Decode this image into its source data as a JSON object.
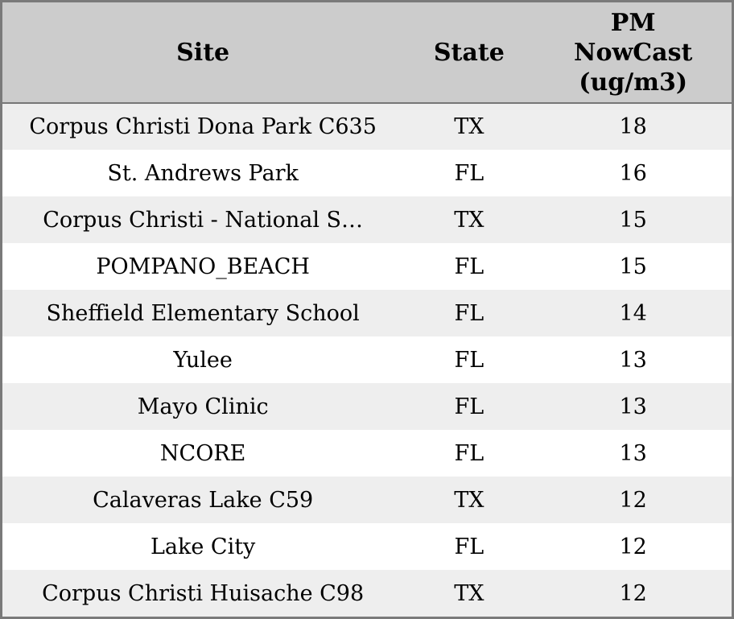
{
  "chart_data": {
    "type": "table",
    "columns": [
      {
        "label": "Site"
      },
      {
        "label": "State"
      },
      {
        "label": "PM NowCast (ug/m3)",
        "lines": [
          "PM",
          "NowCast",
          "(ug/m3)"
        ]
      }
    ],
    "rows": [
      {
        "site": "Corpus Christi Dona Park C635",
        "state": "TX",
        "pm": "18"
      },
      {
        "site": "St. Andrews Park",
        "state": "FL",
        "pm": "16"
      },
      {
        "site": "Corpus Christi - National S…",
        "state": "TX",
        "pm": "15"
      },
      {
        "site": "POMPANO_BEACH",
        "state": "FL",
        "pm": "15"
      },
      {
        "site": "Sheffield Elementary School",
        "state": "FL",
        "pm": "14"
      },
      {
        "site": "Yulee",
        "state": "FL",
        "pm": "13"
      },
      {
        "site": "Mayo Clinic",
        "state": "FL",
        "pm": "13"
      },
      {
        "site": "NCORE",
        "state": "FL",
        "pm": "13"
      },
      {
        "site": "Calaveras Lake C59",
        "state": "TX",
        "pm": "12"
      },
      {
        "site": "Lake City",
        "state": "FL",
        "pm": "12"
      },
      {
        "site": "Corpus Christi Huisache C98",
        "state": "TX",
        "pm": "12"
      }
    ]
  },
  "colors": {
    "header-bg": "#cccccc",
    "row-odd-bg": "#eeeeee",
    "row-even-bg": "#ffffff",
    "table-border": "#7a7a7a",
    "header-separator": "#777777",
    "text": "#000000"
  }
}
